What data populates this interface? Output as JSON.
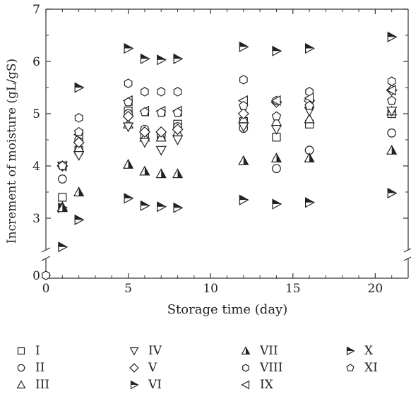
{
  "chart_data": {
    "type": "scatter",
    "xlabel": "Storage time (day)",
    "ylabel": "Increment of moisture (gL/gS)",
    "xlim": [
      0,
      22
    ],
    "ylim": [
      2.2,
      7
    ],
    "broken_y_axis": true,
    "x_ticks": [
      "0",
      "5",
      "10",
      "15",
      "20"
    ],
    "y_ticks": [
      "3",
      "4",
      "5",
      "6",
      "7"
    ],
    "y_break_tick": "0",
    "origin_point": [
      0,
      0
    ],
    "grid": false,
    "legend_position": "bottom",
    "series": [
      {
        "name": "I",
        "marker": "square",
        "points": [
          [
            1,
            3.4
          ],
          [
            2,
            4.3
          ],
          [
            5,
            5.05
          ],
          [
            6,
            4.6
          ],
          [
            7,
            4.55
          ],
          [
            8,
            4.8
          ],
          [
            12,
            4.85
          ],
          [
            14,
            4.55
          ],
          [
            16,
            4.8
          ],
          [
            21,
            5.0
          ]
        ]
      },
      {
        "name": "II",
        "marker": "circle",
        "points": [
          [
            1,
            3.75
          ],
          [
            2,
            4.5
          ],
          [
            5,
            5.0
          ],
          [
            6,
            4.7
          ],
          [
            7,
            4.6
          ],
          [
            8,
            4.75
          ],
          [
            12,
            4.72
          ],
          [
            14,
            3.95
          ],
          [
            16,
            4.3
          ],
          [
            21,
            4.63
          ]
        ]
      },
      {
        "name": "III",
        "marker": "triangle-up",
        "points": [
          [
            1,
            3.22
          ],
          [
            2,
            4.35
          ],
          [
            5,
            4.8
          ],
          [
            6,
            4.55
          ],
          [
            7,
            4.55
          ],
          [
            8,
            4.65
          ],
          [
            12,
            4.9
          ],
          [
            14,
            4.85
          ],
          [
            16,
            4.9
          ],
          [
            21,
            5.05
          ]
        ]
      },
      {
        "name": "IV",
        "marker": "triangle-down",
        "points": [
          [
            1,
            4.0
          ],
          [
            2,
            4.2
          ],
          [
            5,
            4.75
          ],
          [
            6,
            4.45
          ],
          [
            7,
            4.3
          ],
          [
            8,
            4.5
          ],
          [
            12,
            4.75
          ],
          [
            14,
            4.7
          ],
          [
            16,
            5.05
          ],
          [
            21,
            5.05
          ]
        ]
      },
      {
        "name": "V",
        "marker": "diamond",
        "points": [
          [
            1,
            4.0
          ],
          [
            2,
            4.45
          ],
          [
            5,
            4.95
          ],
          [
            6,
            4.65
          ],
          [
            7,
            4.65
          ],
          [
            8,
            4.7
          ],
          [
            12,
            5.0
          ],
          [
            14,
            5.22
          ],
          [
            16,
            5.25
          ],
          [
            21,
            5.45
          ]
        ]
      },
      {
        "name": "VI",
        "marker": "triangle-right-half",
        "points": [
          [
            1,
            3.2
          ],
          [
            2,
            2.97
          ],
          [
            5,
            3.38
          ],
          [
            6,
            3.24
          ],
          [
            7,
            3.22
          ],
          [
            8,
            3.2
          ],
          [
            12,
            3.35
          ],
          [
            14,
            3.27
          ],
          [
            16,
            3.3
          ],
          [
            21,
            3.48
          ]
        ]
      },
      {
        "name": "VII",
        "marker": "triangle-up-half",
        "points": [
          [
            1,
            3.2
          ],
          [
            2,
            3.5
          ],
          [
            5,
            4.03
          ],
          [
            6,
            3.9
          ],
          [
            7,
            3.85
          ],
          [
            8,
            3.85
          ],
          [
            12,
            4.1
          ],
          [
            14,
            4.15
          ],
          [
            16,
            4.15
          ],
          [
            21,
            4.3
          ]
        ]
      },
      {
        "name": "VIII",
        "marker": "hexagon",
        "points": [
          [
            1,
            4.0
          ],
          [
            2,
            4.92
          ],
          [
            5,
            5.58
          ],
          [
            6,
            5.42
          ],
          [
            7,
            5.42
          ],
          [
            8,
            5.42
          ],
          [
            12,
            5.65
          ],
          [
            14,
            5.25
          ],
          [
            16,
            5.42
          ],
          [
            21,
            5.62
          ]
        ]
      },
      {
        "name": "IX",
        "marker": "triangle-left",
        "points": [
          [
            1,
            4.0
          ],
          [
            2,
            4.6
          ],
          [
            5,
            5.25
          ],
          [
            6,
            5.05
          ],
          [
            7,
            5.05
          ],
          [
            8,
            5.05
          ],
          [
            12,
            5.25
          ],
          [
            14,
            5.25
          ],
          [
            16,
            5.3
          ],
          [
            21,
            5.45
          ]
        ]
      },
      {
        "name": "X",
        "marker": "triangle-right-half",
        "points": [
          [
            1,
            2.45
          ],
          [
            2,
            5.5
          ],
          [
            5,
            6.25
          ],
          [
            6,
            6.05
          ],
          [
            7,
            6.03
          ],
          [
            8,
            6.05
          ],
          [
            12,
            6.28
          ],
          [
            14,
            6.2
          ],
          [
            16,
            6.25
          ],
          [
            21,
            6.47
          ]
        ]
      },
      {
        "name": "XI",
        "marker": "pentagon",
        "points": [
          [
            1,
            4.0
          ],
          [
            2,
            4.65
          ],
          [
            5,
            5.22
          ],
          [
            6,
            5.03
          ],
          [
            7,
            5.02
          ],
          [
            8,
            5.02
          ],
          [
            12,
            5.15
          ],
          [
            14,
            4.95
          ],
          [
            16,
            5.15
          ],
          [
            21,
            5.25
          ]
        ]
      }
    ]
  }
}
